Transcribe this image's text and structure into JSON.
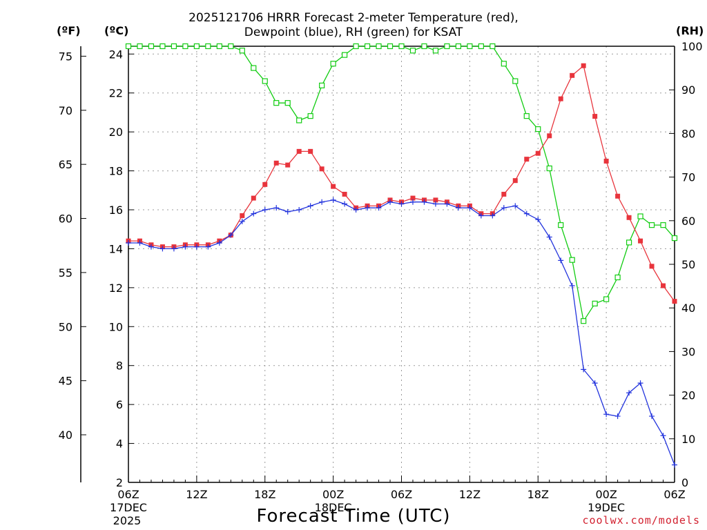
{
  "header": {
    "title_line1": "2025121706 HRRR Forecast 2-meter Temperature (red),",
    "title_line2": "Dewpoint (blue), RH (green) for KSAT"
  },
  "units": {
    "left_f": "(ºF)",
    "left_c": "(ºC)",
    "right_rh": "(RH)"
  },
  "footer": {
    "xlabel": "Forecast Time (UTC)",
    "credit": "coolwx.com/models"
  },
  "colors": {
    "temperature": "#e8343c",
    "dewpoint": "#2233dd",
    "rh": "#11cc11",
    "credit": "#d2202f"
  },
  "chart_data": {
    "type": "line",
    "title": "2025121706 HRRR Forecast 2-meter Temperature (red), Dewpoint (blue), RH (green) for KSAT",
    "xlabel": "Forecast Time (UTC)",
    "x_hours_from_start": [
      0,
      1,
      2,
      3,
      4,
      5,
      6,
      7,
      8,
      9,
      10,
      11,
      12,
      13,
      14,
      15,
      16,
      17,
      18,
      19,
      20,
      21,
      22,
      23,
      24,
      25,
      26,
      27,
      28,
      29,
      30,
      31,
      32,
      33,
      34,
      35,
      36,
      37,
      38,
      39,
      40,
      41,
      42,
      43,
      44,
      45,
      46,
      47,
      48
    ],
    "x_ticks": [
      {
        "hour": 0,
        "label": "06Z",
        "sub1": "17DEC",
        "sub2": "2025"
      },
      {
        "hour": 6,
        "label": "12Z",
        "sub1": "",
        "sub2": ""
      },
      {
        "hour": 12,
        "label": "18Z",
        "sub1": "",
        "sub2": ""
      },
      {
        "hour": 18,
        "label": "00Z",
        "sub1": "18DEC",
        "sub2": ""
      },
      {
        "hour": 24,
        "label": "06Z",
        "sub1": "",
        "sub2": ""
      },
      {
        "hour": 30,
        "label": "12Z",
        "sub1": "",
        "sub2": ""
      },
      {
        "hour": 36,
        "label": "18Z",
        "sub1": "",
        "sub2": ""
      },
      {
        "hour": 42,
        "label": "00Z",
        "sub1": "19DEC",
        "sub2": ""
      },
      {
        "hour": 48,
        "label": "06Z",
        "sub1": "",
        "sub2": ""
      }
    ],
    "y_celsius": {
      "range": [
        2,
        24.4
      ],
      "ticks": [
        2,
        4,
        6,
        8,
        10,
        12,
        14,
        16,
        18,
        20,
        22,
        24
      ]
    },
    "y_fahrenheit": {
      "ticks": [
        40,
        45,
        50,
        55,
        60,
        65,
        70,
        75
      ]
    },
    "y_rh": {
      "range": [
        0,
        100
      ],
      "ticks": [
        0,
        10,
        20,
        30,
        40,
        50,
        60,
        70,
        80,
        90,
        100
      ]
    },
    "grid": true,
    "series": [
      {
        "name": "Temperature",
        "unit": "C",
        "marker": "filled-square",
        "values": [
          14.4,
          14.4,
          14.2,
          14.1,
          14.1,
          14.2,
          14.2,
          14.2,
          14.4,
          14.7,
          15.7,
          16.6,
          17.3,
          18.4,
          18.3,
          19.0,
          19.0,
          18.1,
          17.2,
          16.8,
          16.1,
          16.2,
          16.2,
          16.5,
          16.4,
          16.6,
          16.5,
          16.5,
          16.4,
          16.2,
          16.2,
          15.8,
          15.8,
          16.8,
          17.5,
          18.6,
          18.9,
          19.8,
          21.7,
          22.9,
          23.4,
          20.8,
          18.5,
          16.7,
          15.6,
          14.4,
          13.1,
          12.1,
          11.3
        ]
      },
      {
        "name": "Dewpoint",
        "unit": "C",
        "marker": "plus",
        "values": [
          14.3,
          14.3,
          14.1,
          14.0,
          14.0,
          14.1,
          14.1,
          14.1,
          14.3,
          14.7,
          15.4,
          15.8,
          16.0,
          16.1,
          15.9,
          16.0,
          16.2,
          16.4,
          16.5,
          16.3,
          16.0,
          16.1,
          16.1,
          16.4,
          16.3,
          16.4,
          16.4,
          16.3,
          16.3,
          16.1,
          16.1,
          15.7,
          15.7,
          16.1,
          16.2,
          15.8,
          15.5,
          14.6,
          13.4,
          12.1,
          7.8,
          7.1,
          5.5,
          5.4,
          6.6,
          7.1,
          5.4,
          4.4,
          2.9
        ]
      },
      {
        "name": "RH",
        "unit": "%",
        "marker": "open-square",
        "values": [
          100,
          100,
          100,
          100,
          100,
          100,
          100,
          100,
          100,
          100,
          99,
          95,
          92,
          87,
          87,
          83,
          84,
          91,
          96,
          98,
          100,
          100,
          100,
          100,
          100,
          99,
          100,
          99,
          100,
          100,
          100,
          100,
          100,
          96,
          92,
          84,
          81,
          72,
          59,
          51,
          37,
          41,
          42,
          47,
          55,
          61,
          59,
          59,
          56
        ]
      }
    ]
  }
}
